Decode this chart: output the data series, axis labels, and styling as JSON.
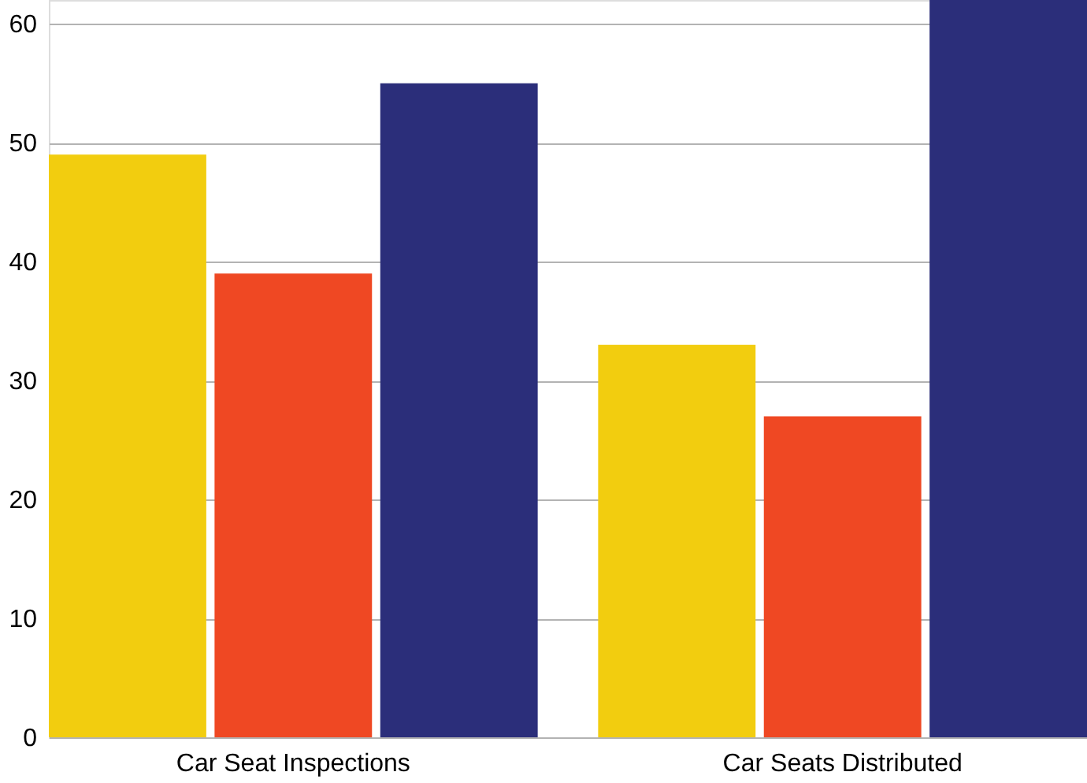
{
  "chart_data": {
    "type": "bar",
    "categories": [
      "Car Seat Inspections",
      "Car Seats Distributed"
    ],
    "series": [
      {
        "color": "#f2cd0f",
        "values": [
          49,
          33
        ]
      },
      {
        "color": "#ef4823",
        "values": [
          39,
          27
        ]
      },
      {
        "color": "#2b2e7a",
        "values": [
          55,
          62
        ]
      }
    ],
    "ylim": [
      0,
      62
    ],
    "yticks": [
      0,
      10,
      20,
      30,
      40,
      50,
      60
    ],
    "grid": "y",
    "legend": false
  }
}
